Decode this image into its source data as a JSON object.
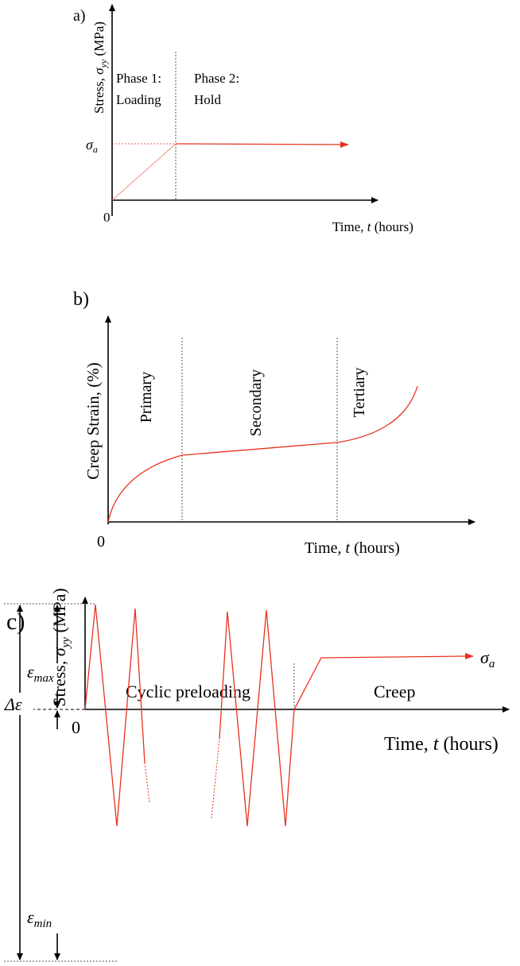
{
  "panels": [
    {
      "label": "a)",
      "ylabel": {
        "pre": "Stress, ",
        "sym": "σ",
        "sub": "yy",
        "post": " (MPa)"
      },
      "origin": "0",
      "xlabel": {
        "pre": "Time, ",
        "sym": "t",
        "post": " (hours)"
      },
      "phases": [
        [
          "Phase 1:",
          "Loading"
        ],
        [
          "Phase 2:",
          "Hold"
        ]
      ],
      "level": {
        "sym": "σ",
        "sub": "a"
      }
    },
    {
      "label": "b)",
      "ylabel": "Creep Strain, (%)",
      "origin": "0",
      "xlabel": {
        "pre": "Time, ",
        "sym": "t",
        "post": " (hours)"
      },
      "phases": [
        "Primary",
        "Secondary",
        "Tertiary"
      ]
    },
    {
      "label": "c)",
      "ylabel": {
        "pre": "Stress, ",
        "sym": "σ",
        "sub": "yy",
        "post": " (MPa)"
      },
      "origin": "0",
      "xlabel": {
        "pre": "Time, ",
        "sym": "t",
        "post": " (hours)"
      },
      "phases": [
        "Cyclic preloading",
        "Creep"
      ],
      "level": {
        "sym": "σ",
        "sub": "a"
      },
      "range": {
        "sym": "Δε",
        "max_sym": "ε",
        "max_sub": "max",
        "min_sym": "ε",
        "min_sub": "min"
      }
    }
  ]
}
